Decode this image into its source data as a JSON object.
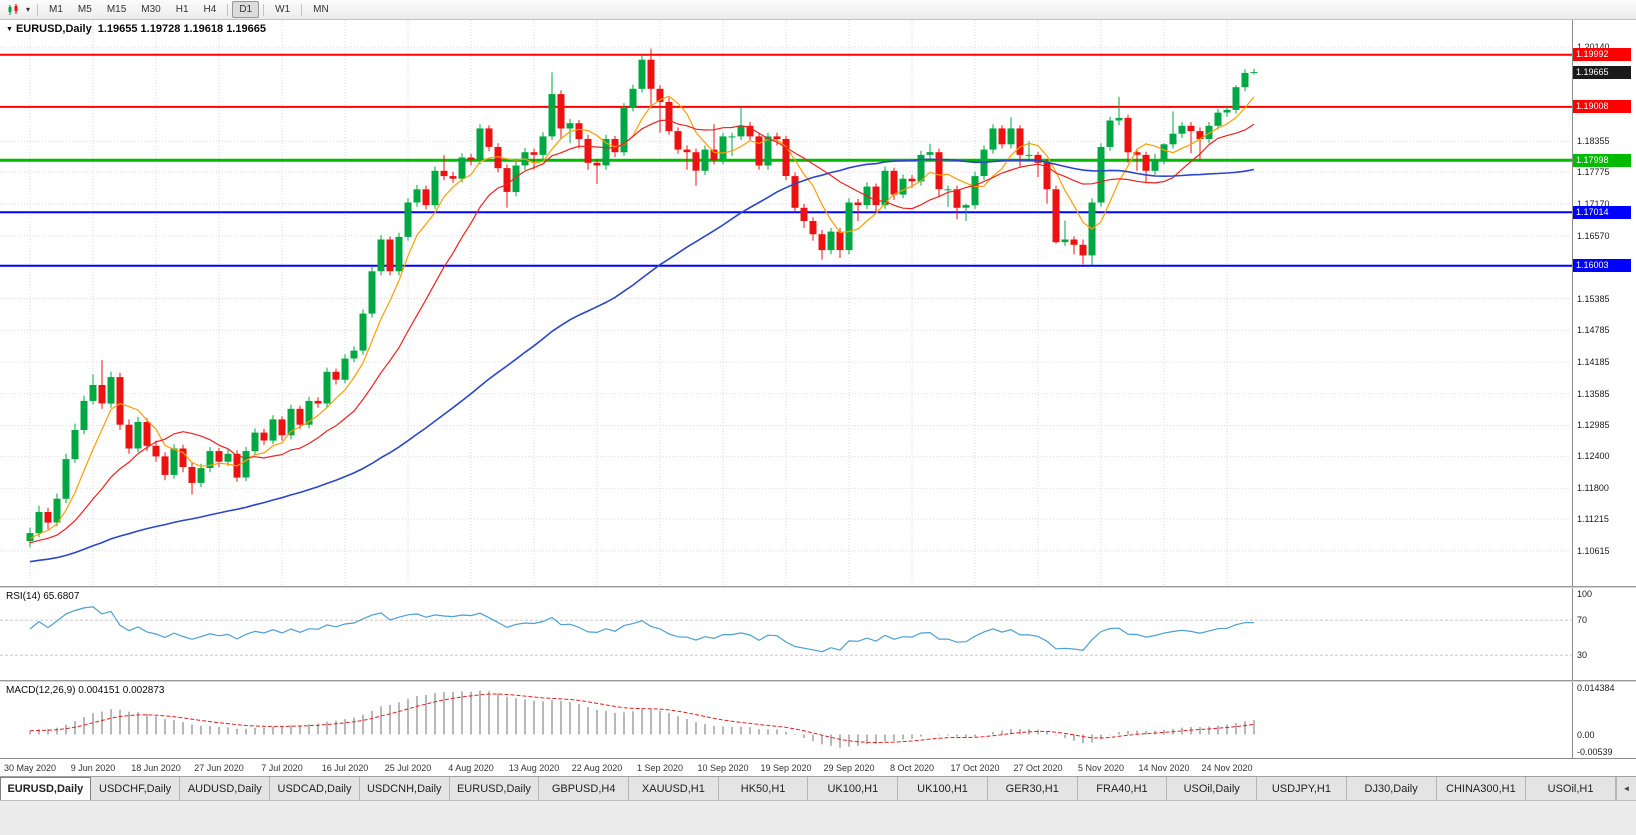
{
  "toolbar": {
    "dropdown_icon": "▾",
    "timeframes": [
      "M1",
      "M5",
      "M15",
      "M30",
      "H1",
      "H4",
      "D1",
      "W1",
      "MN"
    ],
    "active_timeframe": "D1"
  },
  "header": {
    "menu_icon": "▼",
    "symbol": "EURUSD,Daily",
    "ohlc": "1.19655 1.19728 1.19618 1.19665"
  },
  "chart_data": {
    "type": "candlestick",
    "symbol": "EURUSD",
    "period": "Daily",
    "quote": {
      "open": 1.19655,
      "high": 1.19728,
      "low": 1.19618,
      "close": 1.19665
    },
    "colors": {
      "bull": "#00a843",
      "bear": "#ee1111",
      "grid": "#d9d9d9",
      "background": "#ffffff",
      "current_price_badge": "#1a1a1a"
    },
    "y_axis_labels": [
      "1.20140",
      "1.18355",
      "1.17775",
      "1.17170",
      "1.16570",
      "1.15385",
      "1.14785",
      "1.14185",
      "1.13585",
      "1.12985",
      "1.12400",
      "1.11800",
      "1.11215",
      "1.10615"
    ],
    "x_axis_dates": [
      "30 May 2020",
      "9 Jun 2020",
      "18 Jun 2020",
      "27 Jun 2020",
      "7 Jul 2020",
      "16 Jul 2020",
      "25 Jul 2020",
      "4 Aug 2020",
      "13 Aug 2020",
      "22 Aug 2020",
      "1 Sep 2020",
      "10 Sep 2020",
      "19 Sep 2020",
      "29 Sep 2020",
      "8 Oct 2020",
      "17 Oct 2020",
      "27 Oct 2020",
      "5 Nov 2020",
      "14 Nov 2020",
      "24 Nov 2020"
    ],
    "date_indices": [
      0,
      7,
      14,
      21,
      28,
      35,
      42,
      49,
      56,
      63,
      70,
      77,
      84,
      91,
      98,
      105,
      112,
      119,
      126,
      133
    ],
    "horizontal_lines": [
      {
        "price": 1.19992,
        "label": "1.19992",
        "color": "#ff0000",
        "width": 2
      },
      {
        "price": 1.19008,
        "label": "1.19008",
        "color": "#ff0000",
        "width": 2
      },
      {
        "price": 1.17998,
        "label": "1.17998",
        "color": "#00bb00",
        "width": 3
      },
      {
        "price": 1.17014,
        "label": "1.17014",
        "color": "#0000ff",
        "width": 2
      },
      {
        "price": 1.16003,
        "label": "1.16003",
        "color": "#0000ff",
        "width": 2
      }
    ],
    "current_price": {
      "value": 1.19665,
      "label": "1.19665"
    },
    "moving_averages": [
      {
        "period": 6,
        "color": "#ff9d00",
        "width": 1.2
      },
      {
        "period": 14,
        "color": "#ef2020",
        "width": 1.2
      },
      {
        "period": 55,
        "color": "#2b46c8",
        "width": 1.6
      }
    ],
    "ma_seed": {
      "start": 1.0995,
      "end": 1.1085,
      "count": 54,
      "zigzag": 0.0006
    },
    "candles": [
      [
        1.108,
        1.1105,
        1.1068,
        1.1095
      ],
      [
        1.1095,
        1.1147,
        1.1087,
        1.1135
      ],
      [
        1.1135,
        1.1143,
        1.1102,
        1.1115
      ],
      [
        1.1115,
        1.117,
        1.1108,
        1.116
      ],
      [
        1.116,
        1.1245,
        1.1152,
        1.1235
      ],
      [
        1.1235,
        1.1302,
        1.1228,
        1.129
      ],
      [
        1.129,
        1.1355,
        1.1282,
        1.1345
      ],
      [
        1.1345,
        1.1395,
        1.1338,
        1.1375
      ],
      [
        1.1375,
        1.1422,
        1.133,
        1.134
      ],
      [
        1.134,
        1.14,
        1.1332,
        1.139
      ],
      [
        1.139,
        1.1398,
        1.129,
        1.13
      ],
      [
        1.13,
        1.131,
        1.1245,
        1.1255
      ],
      [
        1.1255,
        1.1315,
        1.1248,
        1.1305
      ],
      [
        1.1305,
        1.1312,
        1.125,
        1.126
      ],
      [
        1.126,
        1.127,
        1.123,
        1.124
      ],
      [
        1.124,
        1.1248,
        1.1195,
        1.1205
      ],
      [
        1.1205,
        1.1263,
        1.1198,
        1.1255
      ],
      [
        1.1255,
        1.1262,
        1.121,
        1.122
      ],
      [
        1.122,
        1.1228,
        1.1168,
        1.119
      ],
      [
        1.119,
        1.1226,
        1.1182,
        1.1218
      ],
      [
        1.1218,
        1.1258,
        1.121,
        1.125
      ],
      [
        1.125,
        1.1256,
        1.122,
        1.123
      ],
      [
        1.123,
        1.1253,
        1.1222,
        1.1245
      ],
      [
        1.1245,
        1.1252,
        1.1192,
        1.12
      ],
      [
        1.12,
        1.1258,
        1.1193,
        1.125
      ],
      [
        1.125,
        1.1293,
        1.1242,
        1.1285
      ],
      [
        1.1285,
        1.1292,
        1.1262,
        1.127
      ],
      [
        1.127,
        1.1318,
        1.1263,
        1.131
      ],
      [
        1.131,
        1.1316,
        1.127,
        1.128
      ],
      [
        1.128,
        1.1338,
        1.1272,
        1.133
      ],
      [
        1.133,
        1.1336,
        1.1292,
        1.13
      ],
      [
        1.13,
        1.1353,
        1.1293,
        1.1345
      ],
      [
        1.1345,
        1.1352,
        1.1332,
        1.134
      ],
      [
        1.134,
        1.1408,
        1.1332,
        1.14
      ],
      [
        1.14,
        1.1406,
        1.1376,
        1.1385
      ],
      [
        1.1385,
        1.1433,
        1.1378,
        1.1425
      ],
      [
        1.1425,
        1.1448,
        1.1418,
        1.144
      ],
      [
        1.144,
        1.1518,
        1.1432,
        1.151
      ],
      [
        1.151,
        1.1598,
        1.1502,
        1.159
      ],
      [
        1.159,
        1.1658,
        1.1582,
        1.165
      ],
      [
        1.165,
        1.1656,
        1.1582,
        1.159
      ],
      [
        1.159,
        1.1663,
        1.1582,
        1.1655
      ],
      [
        1.1655,
        1.1728,
        1.1648,
        1.172
      ],
      [
        1.172,
        1.1753,
        1.1712,
        1.1745
      ],
      [
        1.1745,
        1.1752,
        1.1707,
        1.1715
      ],
      [
        1.1715,
        1.1788,
        1.1708,
        1.178
      ],
      [
        1.178,
        1.181,
        1.1762,
        1.177
      ],
      [
        1.177,
        1.1778,
        1.1757,
        1.1765
      ],
      [
        1.1765,
        1.1813,
        1.1758,
        1.1805
      ],
      [
        1.1805,
        1.1812,
        1.179,
        1.18
      ],
      [
        1.18,
        1.1868,
        1.1792,
        1.186
      ],
      [
        1.186,
        1.1866,
        1.1817,
        1.1825
      ],
      [
        1.1825,
        1.1832,
        1.1777,
        1.1785
      ],
      [
        1.1785,
        1.1792,
        1.171,
        1.174
      ],
      [
        1.174,
        1.1798,
        1.1732,
        1.179
      ],
      [
        1.179,
        1.1823,
        1.1782,
        1.1815
      ],
      [
        1.1815,
        1.1822,
        1.1782,
        1.181
      ],
      [
        1.181,
        1.1853,
        1.1802,
        1.1845
      ],
      [
        1.1845,
        1.1966,
        1.1838,
        1.1925
      ],
      [
        1.1925,
        1.1932,
        1.1842,
        1.186
      ],
      [
        1.186,
        1.1878,
        1.1832,
        1.187
      ],
      [
        1.187,
        1.1876,
        1.1822,
        1.184
      ],
      [
        1.184,
        1.1848,
        1.1782,
        1.1795
      ],
      [
        1.1795,
        1.1802,
        1.1755,
        1.179
      ],
      [
        1.179,
        1.1848,
        1.1782,
        1.184
      ],
      [
        1.184,
        1.1846,
        1.1806,
        1.1815
      ],
      [
        1.1815,
        1.1908,
        1.1808,
        1.19
      ],
      [
        1.19,
        1.1943,
        1.1892,
        1.1935
      ],
      [
        1.1935,
        1.1998,
        1.1928,
        1.199
      ],
      [
        1.199,
        1.2011,
        1.1898,
        1.1935
      ],
      [
        1.1935,
        1.1942,
        1.1852,
        1.191
      ],
      [
        1.191,
        1.1918,
        1.1848,
        1.1855
      ],
      [
        1.1855,
        1.1862,
        1.1812,
        1.182
      ],
      [
        1.182,
        1.1828,
        1.1782,
        1.1815
      ],
      [
        1.1815,
        1.1822,
        1.1752,
        1.178
      ],
      [
        1.178,
        1.1828,
        1.1772,
        1.182
      ],
      [
        1.182,
        1.1868,
        1.1792,
        1.18
      ],
      [
        1.18,
        1.1852,
        1.1792,
        1.1845
      ],
      [
        1.1845,
        1.1852,
        1.1808,
        1.1845
      ],
      [
        1.1845,
        1.1901,
        1.1838,
        1.1865
      ],
      [
        1.1865,
        1.1872,
        1.1838,
        1.1845
      ],
      [
        1.1845,
        1.1852,
        1.1782,
        1.179
      ],
      [
        1.179,
        1.1852,
        1.1782,
        1.1845
      ],
      [
        1.1845,
        1.1852,
        1.1828,
        1.184
      ],
      [
        1.184,
        1.1846,
        1.1762,
        1.177
      ],
      [
        1.177,
        1.1777,
        1.1702,
        1.171
      ],
      [
        1.171,
        1.1718,
        1.1672,
        1.1685
      ],
      [
        1.1685,
        1.1692,
        1.1648,
        1.166
      ],
      [
        1.166,
        1.1668,
        1.1612,
        1.163
      ],
      [
        1.163,
        1.1672,
        1.1622,
        1.1665
      ],
      [
        1.1665,
        1.1672,
        1.1615,
        1.163
      ],
      [
        1.163,
        1.1728,
        1.1622,
        1.172
      ],
      [
        1.172,
        1.1727,
        1.1685,
        1.1715
      ],
      [
        1.1715,
        1.1758,
        1.1708,
        1.175
      ],
      [
        1.175,
        1.1756,
        1.1702,
        1.1715
      ],
      [
        1.1715,
        1.1788,
        1.1708,
        1.178
      ],
      [
        1.178,
        1.1786,
        1.1725,
        1.1735
      ],
      [
        1.1735,
        1.1773,
        1.1728,
        1.1765
      ],
      [
        1.1765,
        1.1772,
        1.1748,
        1.176
      ],
      [
        1.176,
        1.1818,
        1.1752,
        1.181
      ],
      [
        1.181,
        1.1831,
        1.1802,
        1.1815
      ],
      [
        1.1815,
        1.1822,
        1.1732,
        1.1745
      ],
      [
        1.1745,
        1.1752,
        1.1712,
        1.1745
      ],
      [
        1.1745,
        1.1752,
        1.1688,
        1.171
      ],
      [
        1.171,
        1.1718,
        1.1685,
        1.1715
      ],
      [
        1.1715,
        1.1778,
        1.1708,
        1.177
      ],
      [
        1.177,
        1.1828,
        1.1762,
        1.182
      ],
      [
        1.182,
        1.1868,
        1.1812,
        1.186
      ],
      [
        1.186,
        1.1866,
        1.1822,
        1.183
      ],
      [
        1.183,
        1.1881,
        1.1822,
        1.186
      ],
      [
        1.186,
        1.1866,
        1.1786,
        1.181
      ],
      [
        1.181,
        1.1836,
        1.1802,
        1.181
      ],
      [
        1.181,
        1.1816,
        1.1768,
        1.1795
      ],
      [
        1.1795,
        1.1802,
        1.1718,
        1.1745
      ],
      [
        1.1745,
        1.1752,
        1.1642,
        1.1645
      ],
      [
        1.1645,
        1.1686,
        1.1638,
        1.165
      ],
      [
        1.165,
        1.1656,
        1.1622,
        1.164
      ],
      [
        1.164,
        1.165,
        1.1603,
        1.162
      ],
      [
        1.162,
        1.1728,
        1.1602,
        1.172
      ],
      [
        1.172,
        1.1832,
        1.1712,
        1.1825
      ],
      [
        1.1825,
        1.1882,
        1.1818,
        1.1875
      ],
      [
        1.1875,
        1.192,
        1.1866,
        1.188
      ],
      [
        1.188,
        1.1886,
        1.1795,
        1.1815
      ],
      [
        1.1815,
        1.1822,
        1.178,
        1.181
      ],
      [
        1.181,
        1.1816,
        1.1758,
        1.178
      ],
      [
        1.178,
        1.1812,
        1.1772,
        1.18
      ],
      [
        1.18,
        1.1832,
        1.1792,
        1.183
      ],
      [
        1.183,
        1.1892,
        1.1822,
        1.185
      ],
      [
        1.185,
        1.1872,
        1.1842,
        1.1865
      ],
      [
        1.1865,
        1.1872,
        1.1813,
        1.1855
      ],
      [
        1.1855,
        1.1862,
        1.18,
        1.184
      ],
      [
        1.184,
        1.1872,
        1.1832,
        1.1865
      ],
      [
        1.1865,
        1.1897,
        1.1858,
        1.189
      ],
      [
        1.189,
        1.1902,
        1.1882,
        1.1895
      ],
      [
        1.1895,
        1.1942,
        1.1888,
        1.1938
      ],
      [
        1.1938,
        1.1972,
        1.193,
        1.1965
      ],
      [
        1.19655,
        1.19728,
        1.19618,
        1.19665
      ]
    ],
    "indicators": [
      {
        "name": "RSI",
        "display": "RSI(14) 65.6807",
        "color": "#4aa0d5",
        "levels": [
          100,
          70,
          30
        ],
        "level_labels": [
          "100",
          "70",
          "30"
        ]
      },
      {
        "name": "MACD",
        "display": "MACD(12,26,9) 0.004151 0.002873",
        "histogram_color": "#b8b8b8",
        "signal_color": "#e02020",
        "axis_labels": [
          "0.014384",
          "0.00",
          "-0.00539"
        ]
      }
    ]
  },
  "tabs": {
    "scroll_left_icon": "◄",
    "items": [
      {
        "label": "EURUSD,Daily",
        "active": true
      },
      {
        "label": "USDCHF,Daily",
        "active": false
      },
      {
        "label": "AUDUSD,Daily",
        "active": false
      },
      {
        "label": "USDCAD,Daily",
        "active": false
      },
      {
        "label": "USDCNH,Daily",
        "active": false
      },
      {
        "label": "EURUSD,Daily",
        "active": false
      },
      {
        "label": "GBPUSD,H4",
        "active": false
      },
      {
        "label": "XAUUSD,H1",
        "active": false
      },
      {
        "label": "HK50,H1",
        "active": false
      },
      {
        "label": "UK100,H1",
        "active": false
      },
      {
        "label": "UK100,H1",
        "active": false
      },
      {
        "label": "GER30,H1",
        "active": false
      },
      {
        "label": "FRA40,H1",
        "active": false
      },
      {
        "label": "USOil,Daily",
        "active": false
      },
      {
        "label": "USDJPY,H1",
        "active": false
      },
      {
        "label": "DJ30,Daily",
        "active": false
      },
      {
        "label": "CHINA300,H1",
        "active": false
      },
      {
        "label": "USOil,H1",
        "active": false
      }
    ]
  }
}
